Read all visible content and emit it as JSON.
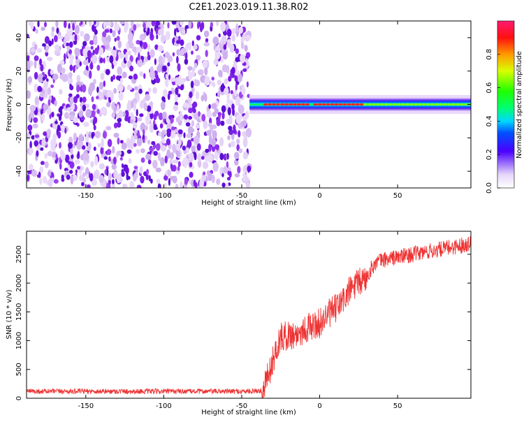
{
  "page_title": "C2E1.2023.019.11.38.R02",
  "colors": {
    "snr_line": "#ee3333",
    "plot_frame": "#000000",
    "noise_purple": "#7a1fe6",
    "noise_lavender": "#d8b8f4"
  },
  "chart_data": [
    {
      "type": "heatmap",
      "xlabel": "Height of straight line (km)",
      "ylabel": "Frequency (Hz)",
      "xlim": [
        -188,
        97
      ],
      "ylim": [
        -50,
        50
      ],
      "xticks": [
        -150,
        -100,
        -50,
        0,
        50
      ],
      "yticks": [
        -40,
        -20,
        0,
        20,
        40
      ],
      "grid": false,
      "noise_region": {
        "x_from": -188,
        "x_to": -45,
        "y_from": -50,
        "y_to": 50
      },
      "signal_band": {
        "x_from": -45,
        "x_to": 97,
        "center_frequency": 0,
        "half_width": 4,
        "peak_segments": [
          {
            "x_from": -36,
            "x_to": -8,
            "amplitude": 0.95
          },
          {
            "x_from": -4,
            "x_to": 28,
            "amplitude": 0.95
          },
          {
            "x_from": 28,
            "x_to": 97,
            "amplitude": 0.55
          }
        ]
      },
      "colorbar": {
        "label": "Normalized spectral amplitude",
        "range": [
          0,
          1
        ],
        "ticks": [
          0.0,
          0.2,
          0.4,
          0.6,
          0.8
        ],
        "tick_labels": [
          "0.0",
          "0.2",
          "0.4",
          "0.6",
          "0.8"
        ]
      }
    },
    {
      "type": "line",
      "xlabel": "Height of straight line (km)",
      "ylabel": "SNR (10 * v/v)",
      "xlim": [
        -188,
        97
      ],
      "ylim": [
        0,
        2900
      ],
      "xticks": [
        -150,
        -100,
        -50,
        0,
        50
      ],
      "yticks": [
        0,
        500,
        1000,
        1500,
        2000,
        2500
      ],
      "grid": false,
      "series": [
        {
          "x": [
            -188,
            -150,
            -100,
            -50,
            -37,
            -34,
            -31,
            -28,
            -25,
            -20,
            -15,
            -10,
            -5,
            0,
            5,
            10,
            15,
            20,
            25,
            30,
            33,
            36,
            40,
            50,
            60,
            70,
            80,
            90,
            97
          ],
          "values": [
            120,
            120,
            120,
            120,
            130,
            350,
            550,
            850,
            1050,
            1100,
            1100,
            1200,
            1250,
            1300,
            1450,
            1550,
            1700,
            1900,
            2000,
            2100,
            2250,
            2350,
            2400,
            2450,
            2500,
            2550,
            2600,
            2650,
            2700
          ]
        }
      ]
    }
  ]
}
